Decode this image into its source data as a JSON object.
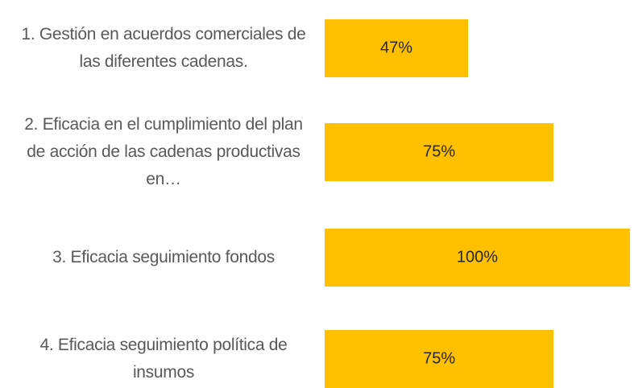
{
  "chart_data": {
    "type": "bar",
    "orientation": "horizontal",
    "categories": [
      "1. Gestión en acuerdos comerciales de las diferentes cadenas.",
      "2. Eficacia en el cumplimiento del plan de acción de las cadenas productivas en…",
      "3. Eficacia seguimiento fondos",
      "4. Eficacia seguimiento política de insumos"
    ],
    "values": [
      47,
      75,
      100,
      75
    ],
    "value_labels": [
      "47%",
      "75%",
      "100%",
      "75%"
    ],
    "color": "#ffc000"
  }
}
